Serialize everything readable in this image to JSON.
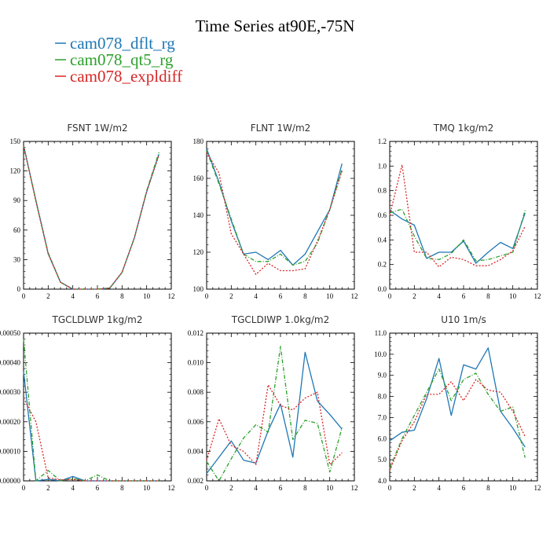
{
  "figure": {
    "title": "Time Series at90E,-75N",
    "legend": [
      {
        "label": "cam078_dflt_rg",
        "color": "#1f77b4"
      },
      {
        "label": "cam078_qt5_rg",
        "color": "#2ca02c"
      },
      {
        "label": "cam078_expldiff",
        "color": "#d62728"
      }
    ]
  },
  "chart_data": [
    {
      "type": "line",
      "title": "FSNT    1W/m2",
      "x": [
        0,
        1,
        2,
        3,
        4,
        5,
        6,
        7,
        8,
        9,
        10,
        11
      ],
      "xlim": [
        0,
        12
      ],
      "xticks": [
        0,
        2,
        4,
        6,
        8,
        10,
        12
      ],
      "ylim": [
        0,
        150
      ],
      "yticks": [
        0,
        30,
        60,
        90,
        120,
        150
      ],
      "yticklabels": [
        "0",
        "30",
        "60",
        "90",
        "120",
        "150"
      ],
      "series": [
        {
          "name": "cam078_dflt_rg",
          "values": [
            146,
            90,
            36,
            7,
            0,
            0,
            0,
            1,
            17,
            52,
            99,
            137
          ]
        },
        {
          "name": "cam078_qt5_rg",
          "values": [
            146,
            90,
            37,
            7,
            0,
            0,
            0,
            1,
            17,
            52,
            100,
            139
          ]
        },
        {
          "name": "cam078_expldiff",
          "values": [
            146,
            89,
            36,
            7,
            0,
            0,
            0,
            1,
            17,
            52,
            99,
            136
          ]
        }
      ]
    },
    {
      "type": "line",
      "title": "FLNT    1W/m2",
      "x": [
        0,
        1,
        2,
        3,
        4,
        5,
        6,
        7,
        8,
        9,
        10,
        11
      ],
      "xlim": [
        0,
        12
      ],
      "xticks": [
        0,
        2,
        4,
        6,
        8,
        10,
        12
      ],
      "ylim": [
        100,
        180
      ],
      "yticks": [
        100,
        120,
        140,
        160,
        180
      ],
      "yticklabels": [
        "100",
        "120",
        "140",
        "160",
        "180"
      ],
      "series": [
        {
          "name": "cam078_dflt_rg",
          "values": [
            176,
            158,
            137,
            119,
            120,
            116,
            121,
            113,
            119,
            131,
            143,
            168
          ]
        },
        {
          "name": "cam078_qt5_rg",
          "values": [
            175,
            157,
            138,
            119,
            115,
            115,
            119,
            113,
            115,
            125,
            143,
            165
          ]
        },
        {
          "name": "cam078_expldiff",
          "values": [
            174,
            163,
            130,
            119,
            108,
            114,
            110,
            110,
            111,
            126,
            143,
            164
          ]
        }
      ]
    },
    {
      "type": "line",
      "title": "TMQ    1kg/m2",
      "x": [
        0,
        1,
        2,
        3,
        4,
        5,
        6,
        7,
        8,
        9,
        10,
        11
      ],
      "xlim": [
        0,
        12
      ],
      "xticks": [
        0,
        2,
        4,
        6,
        8,
        10,
        12
      ],
      "ylim": [
        0,
        1.2
      ],
      "yticks": [
        0,
        0.2,
        0.4,
        0.6,
        0.8,
        1.0,
        1.2
      ],
      "yticklabels": [
        "0.0",
        "0.2",
        "0.4",
        "0.6",
        "0.8",
        "1.0",
        "1.2"
      ],
      "series": [
        {
          "name": "cam078_dflt_rg",
          "values": [
            0.64,
            0.57,
            0.52,
            0.25,
            0.3,
            0.3,
            0.39,
            0.21,
            0.3,
            0.38,
            0.33,
            0.62
          ]
        },
        {
          "name": "cam078_qt5_rg",
          "values": [
            0.62,
            0.65,
            0.43,
            0.25,
            0.24,
            0.29,
            0.4,
            0.23,
            0.24,
            0.27,
            0.3,
            0.64
          ]
        },
        {
          "name": "cam078_expldiff",
          "values": [
            0.6,
            1.01,
            0.3,
            0.3,
            0.18,
            0.26,
            0.24,
            0.19,
            0.19,
            0.24,
            0.31,
            0.51
          ]
        }
      ]
    },
    {
      "type": "line",
      "title": "TGCLDLWP    1kg/m2",
      "x": [
        0,
        1,
        2,
        3,
        4,
        5,
        6,
        7,
        8,
        9,
        10,
        11
      ],
      "xlim": [
        0,
        12
      ],
      "xticks": [
        0,
        2,
        4,
        6,
        8,
        10,
        12
      ],
      "ylim": [
        0,
        0.0005
      ],
      "yticks": [
        0,
        0.0001,
        0.0002,
        0.0003,
        0.0004,
        0.0005
      ],
      "yticklabels": [
        "0.00000",
        "0.00010",
        "0.00020",
        "0.00030",
        "0.00040",
        "0.00050"
      ],
      "series": [
        {
          "name": "cam078_dflt_rg",
          "values": [
            0.00037,
            0.0,
            5e-06,
            0.0,
            1.5e-05,
            0.0,
            0.0,
            0.0,
            0.0,
            0.0,
            0.0,
            0.0
          ]
        },
        {
          "name": "cam078_qt5_rg",
          "values": [
            0.00048,
            0.0,
            3.5e-05,
            0.0,
            8e-06,
            0.0,
            2e-05,
            0.0,
            0.0,
            0.0,
            0.0,
            0.0
          ]
        },
        {
          "name": "cam078_expldiff",
          "values": [
            0.00028,
            0.0002,
            1e-05,
            3e-06,
            5e-06,
            0.0,
            0.0,
            0.0,
            0.0,
            0.0,
            0.0,
            0.0
          ]
        }
      ]
    },
    {
      "type": "line",
      "title": "TGCLDIWP    1.0kg/m2",
      "x": [
        0,
        1,
        2,
        3,
        4,
        5,
        6,
        7,
        8,
        9,
        10,
        11
      ],
      "xlim": [
        0,
        12
      ],
      "xticks": [
        0,
        2,
        4,
        6,
        8,
        10,
        12
      ],
      "ylim": [
        0.002,
        0.012
      ],
      "yticks": [
        0.002,
        0.004,
        0.006,
        0.008,
        0.01,
        0.012
      ],
      "yticklabels": [
        "0.002",
        "0.004",
        "0.006",
        "0.008",
        "0.010",
        "0.012"
      ],
      "series": [
        {
          "name": "cam078_dflt_rg",
          "values": [
            0.0025,
            0.0036,
            0.0047,
            0.0034,
            0.0032,
            0.0054,
            0.0072,
            0.0036,
            0.0107,
            0.0074,
            0.0065,
            0.0055
          ]
        },
        {
          "name": "cam078_qt5_rg",
          "values": [
            0.0033,
            0.002,
            0.0035,
            0.0049,
            0.0058,
            0.0053,
            0.0111,
            0.0048,
            0.0061,
            0.0059,
            0.0026,
            0.0056
          ]
        },
        {
          "name": "cam078_expldiff",
          "values": [
            0.0034,
            0.0062,
            0.0044,
            0.004,
            0.0031,
            0.0085,
            0.0071,
            0.0068,
            0.0076,
            0.008,
            0.0031,
            0.0039
          ]
        }
      ]
    },
    {
      "type": "line",
      "title": "U10    1m/s",
      "x": [
        0,
        1,
        2,
        3,
        4,
        5,
        6,
        7,
        8,
        9,
        10,
        11
      ],
      "xlim": [
        0,
        12
      ],
      "xticks": [
        0,
        2,
        4,
        6,
        8,
        10,
        12
      ],
      "ylim": [
        4.0,
        11.0
      ],
      "yticks": [
        4,
        5,
        6,
        7,
        8,
        9,
        10,
        11
      ],
      "yticklabels": [
        "4.0",
        "5.0",
        "6.0",
        "7.0",
        "8.0",
        "9.0",
        "10.0",
        "11.0"
      ],
      "series": [
        {
          "name": "cam078_dflt_rg",
          "values": [
            5.9,
            6.3,
            6.4,
            7.9,
            9.8,
            7.1,
            9.5,
            9.3,
            10.3,
            7.3,
            6.5,
            5.6
          ]
        },
        {
          "name": "cam078_qt5_rg",
          "values": [
            4.6,
            6.0,
            7.1,
            8.2,
            9.3,
            7.8,
            8.8,
            9.1,
            8.1,
            7.3,
            7.5,
            5.1
          ]
        },
        {
          "name": "cam078_expldiff",
          "values": [
            4.5,
            5.9,
            6.8,
            8.1,
            8.1,
            8.7,
            7.8,
            8.8,
            8.3,
            8.2,
            7.3,
            6.1
          ]
        }
      ]
    }
  ]
}
